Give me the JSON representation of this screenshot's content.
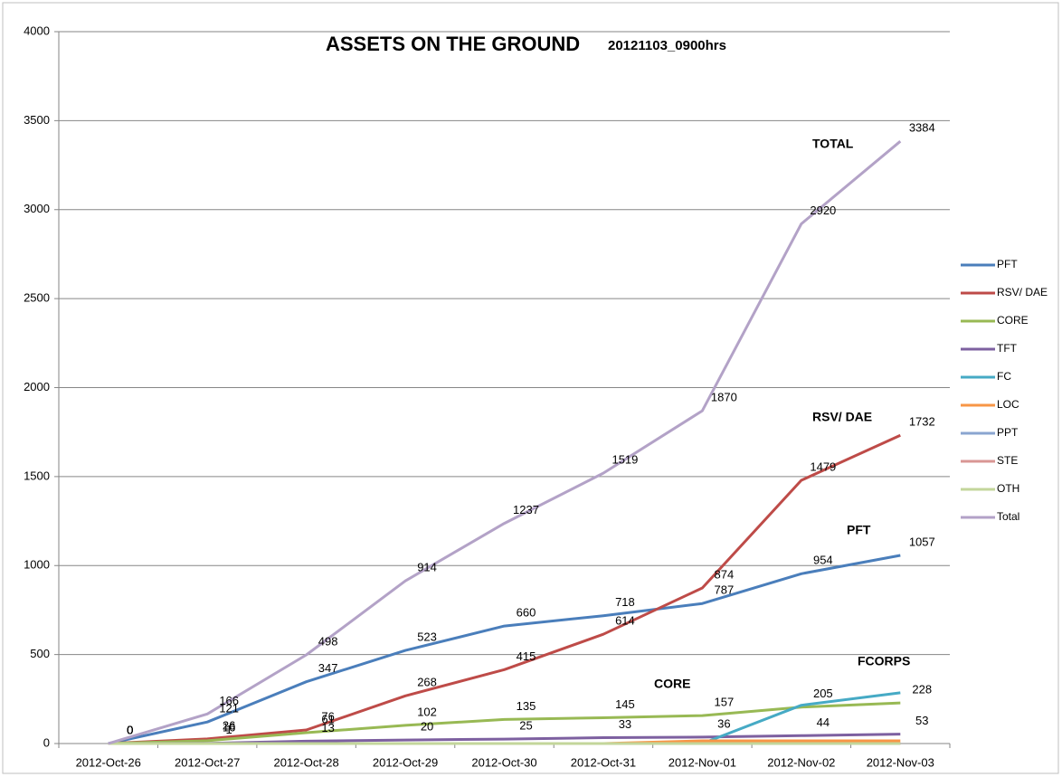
{
  "chart_data": {
    "type": "line",
    "title": "ASSETS ON THE GROUND",
    "subtitle": "20121103_0900hrs",
    "categories": [
      "2012-Oct-26",
      "2012-Oct-27",
      "2012-Oct-28",
      "2012-Oct-29",
      "2012-Oct-30",
      "2012-Oct-31",
      "2012-Nov-01",
      "2012-Nov-02",
      "2012-Nov-03"
    ],
    "ylim": [
      0,
      4000
    ],
    "yticks": [
      0,
      500,
      1000,
      1500,
      2000,
      2500,
      3000,
      3500,
      4000
    ],
    "grid": true,
    "legend": "right",
    "series": [
      {
        "name": "PFT",
        "color": "#4a7ebb",
        "data_labels": true,
        "values": [
          0,
          121,
          347,
          523,
          660,
          718,
          787,
          954,
          1057
        ]
      },
      {
        "name": "RSV/ DAE",
        "color": "#be4b48",
        "data_labels": true,
        "values": [
          0,
          26,
          76,
          268,
          415,
          614,
          874,
          1479,
          1732
        ]
      },
      {
        "name": "CORE",
        "color": "#98b954",
        "data_labels": true,
        "values": [
          0,
          16,
          61,
          102,
          135,
          145,
          157,
          205,
          228
        ]
      },
      {
        "name": "TFT",
        "color": "#7d60a0",
        "data_labels": true,
        "values": [
          0,
          1,
          13,
          20,
          25,
          33,
          36,
          44,
          53
        ]
      },
      {
        "name": "FC",
        "color": "#46aac5",
        "data_labels": false,
        "values": [
          null,
          null,
          null,
          null,
          null,
          null,
          0,
          215,
          285
        ]
      },
      {
        "name": "LOC",
        "color": "#f79646",
        "data_labels": false,
        "values": [
          0,
          0,
          0,
          0,
          0,
          0,
          15,
          15,
          15
        ]
      },
      {
        "name": "PPT",
        "color": "#8aa5d0",
        "data_labels": false,
        "values": [
          0,
          0,
          0,
          0,
          0,
          0,
          0,
          0,
          0
        ]
      },
      {
        "name": "STE",
        "color": "#d99694",
        "data_labels": false,
        "values": [
          0,
          0,
          0,
          0,
          0,
          0,
          0,
          0,
          0
        ]
      },
      {
        "name": "OTH",
        "color": "#c3d69b",
        "data_labels": false,
        "values": [
          0,
          0,
          0,
          0,
          0,
          0,
          0,
          0,
          0
        ]
      },
      {
        "name": "Total",
        "color": "#b3a2c7",
        "data_labels": true,
        "values": [
          0,
          166,
          498,
          914,
          1237,
          1519,
          1870,
          2920,
          3384
        ]
      }
    ],
    "annotations": [
      "TOTAL",
      "RSV/ DAE",
      "PFT",
      "CORE",
      "FCORPS"
    ]
  }
}
